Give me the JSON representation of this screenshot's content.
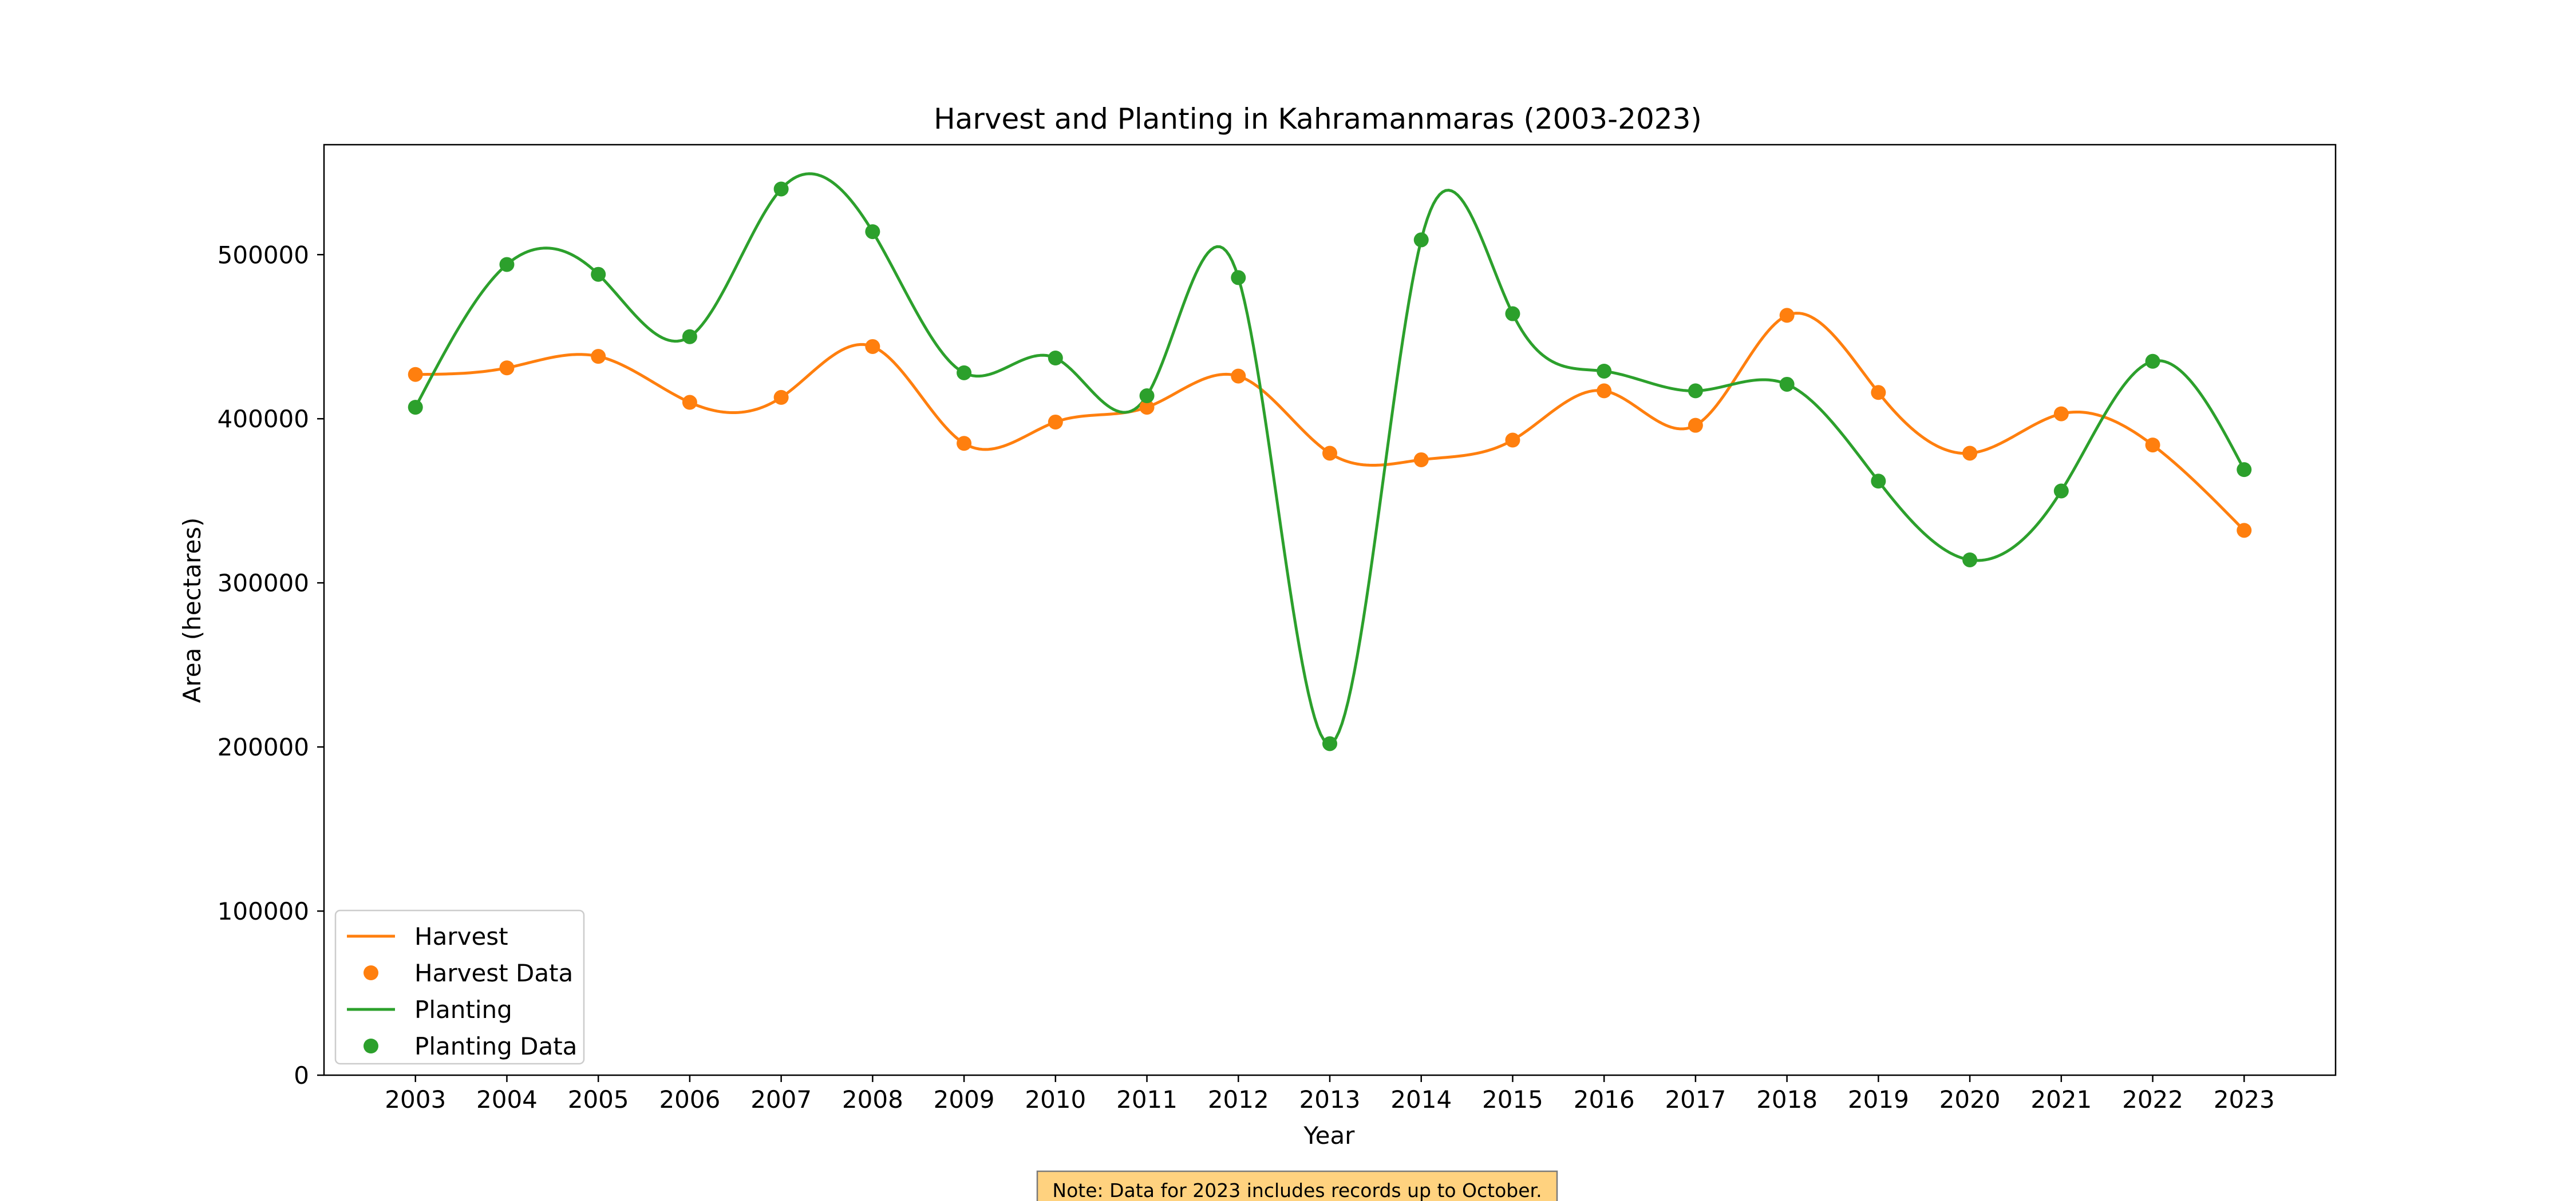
{
  "chart_data": {
    "type": "line",
    "title": "Harvest and Planting in Kahramanmaras (2003-2023)",
    "xlabel": "Year",
    "ylabel": "Area (hectares)",
    "x": [
      2003,
      2004,
      2005,
      2006,
      2007,
      2008,
      2009,
      2010,
      2011,
      2012,
      2013,
      2014,
      2015,
      2016,
      2017,
      2018,
      2019,
      2020,
      2021,
      2022,
      2023
    ],
    "x_tick_labels": [
      "2003",
      "2004",
      "2005",
      "2006",
      "2007",
      "2008",
      "2009",
      "2010",
      "2011",
      "2012",
      "2013",
      "2014",
      "2015",
      "2016",
      "2017",
      "2018",
      "2019",
      "2020",
      "2021",
      "2022",
      "2023"
    ],
    "ylim": [
      0,
      567000
    ],
    "y_ticks": [
      0,
      100000,
      200000,
      300000,
      400000,
      500000
    ],
    "y_tick_labels": [
      "0",
      "100000",
      "200000",
      "300000",
      "400000",
      "500000"
    ],
    "grid": false,
    "legend_position": "lower-left",
    "smooth": true,
    "series": [
      {
        "name": "Harvest",
        "marker_label": "Harvest Data",
        "color": "#ff7f0e",
        "values": [
          427000,
          431000,
          438000,
          410000,
          413000,
          444000,
          385000,
          398000,
          407000,
          426000,
          379000,
          375000,
          387000,
          417000,
          396000,
          463000,
          416000,
          379000,
          403000,
          384000,
          332000
        ]
      },
      {
        "name": "Planting",
        "marker_label": "Planting Data",
        "color": "#2ca02c",
        "values": [
          407000,
          494000,
          488000,
          450000,
          540000,
          514000,
          428000,
          437000,
          414000,
          486000,
          202000,
          509000,
          464000,
          429000,
          417000,
          421000,
          362000,
          314000,
          356000,
          435000,
          369000
        ]
      }
    ],
    "legend": [
      "Harvest",
      "Harvest Data",
      "Planting",
      "Planting Data"
    ],
    "annotation": "Note: Data for 2023 includes records up to October."
  }
}
